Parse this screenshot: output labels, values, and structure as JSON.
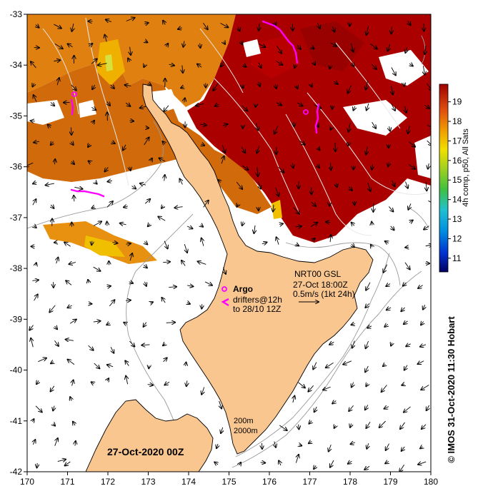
{
  "map": {
    "lon_range": [
      170,
      180
    ],
    "lat_range": [
      -42,
      -33
    ],
    "x_ticks": [
      "170",
      "171",
      "172",
      "173",
      "174",
      "175",
      "176",
      "177",
      "178",
      "179",
      "180"
    ],
    "y_ticks": [
      "-33",
      "-34",
      "-35",
      "-36",
      "-37",
      "-38",
      "-39",
      "-40",
      "-41",
      "-42"
    ],
    "colors": {
      "land": "#f9c690",
      "sst_warm": "#aa0000",
      "sst_mid": "#e08010",
      "sst_cool": "#f0c000",
      "drifter": "#ff00ff"
    }
  },
  "colorbar": {
    "title": "4h comp, p50, All Sats",
    "range": [
      10.3,
      19.9
    ],
    "ticks": [
      "11",
      "12",
      "13",
      "14",
      "15",
      "16",
      "17",
      "18",
      "19"
    ]
  },
  "legend": {
    "argo_label": "Argo",
    "drifters_line1": "drifters@12h",
    "drifters_line2": "to 28/10 12Z",
    "current_line1": "NRT00 GSL",
    "current_line2": "27-Oct 18:00Z",
    "current_line3": "0.5m/s (1kt 24h)",
    "depth_200": "200m",
    "depth_2000": "2000m"
  },
  "date_label": "27-Oct-2020 00Z",
  "credit": "© IMOS 31-Oct-2020 11:30 Hobart"
}
